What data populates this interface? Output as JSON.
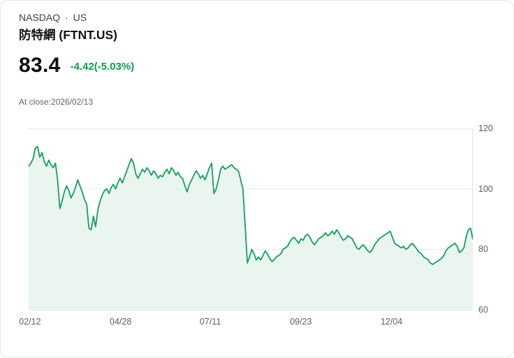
{
  "header": {
    "exchange": "NASDAQ",
    "separator": "·",
    "region": "US",
    "title": "防特網 (FTNT.US)",
    "price": "83.4",
    "change": "-4.42(-5.03%)",
    "close_info": "At close:2026/02/13"
  },
  "colors": {
    "line": "#14a05a",
    "area_fill": "#e9f5ee",
    "change_text": "#0f9d4e",
    "gridline": "#e9e9e9"
  },
  "chart_data": {
    "type": "area",
    "series_name": "FTNT.US",
    "x_tick_labels": [
      "02/12",
      "04/28",
      "07/11",
      "09/23",
      "12/04"
    ],
    "x_tick_positions": [
      0.003,
      0.207,
      0.409,
      0.613,
      0.817
    ],
    "y_ticks": [
      120,
      100,
      80,
      60
    ],
    "ylim": [
      60,
      120
    ],
    "y_axis_side": "right",
    "grid": true,
    "legend": "none",
    "values": [
      107.5,
      108.5,
      110,
      113.5,
      114,
      110.5,
      112,
      109,
      107.5,
      109.5,
      108,
      107,
      108.5,
      103,
      93.5,
      96,
      99,
      101,
      99.5,
      97,
      98.5,
      100.5,
      103,
      101,
      99,
      96.5,
      95,
      87,
      86.5,
      91,
      87.5,
      93,
      96,
      98,
      99.5,
      100,
      98.5,
      100.5,
      101.5,
      100,
      102,
      103.5,
      102,
      104,
      106,
      108,
      110,
      108.5,
      105,
      103.5,
      105,
      106.5,
      105.5,
      107,
      106,
      104.5,
      106,
      105,
      103.5,
      104.5,
      104,
      105.5,
      106.5,
      105,
      107,
      106,
      104.5,
      105.5,
      104,
      103.5,
      101,
      99,
      101.5,
      103,
      104.5,
      106,
      105,
      103.5,
      104.5,
      103,
      105,
      107,
      108.5,
      98.5,
      100,
      103,
      106.5,
      107.5,
      106.5,
      107,
      107.5,
      108,
      107,
      106.5,
      106,
      103,
      100,
      88,
      75.5,
      77.5,
      80,
      78.5,
      76.5,
      77.5,
      76.5,
      78,
      79.5,
      78.5,
      77,
      76,
      76.5,
      77.5,
      78,
      78.5,
      80,
      80.5,
      81,
      82.5,
      83.5,
      84,
      83,
      82,
      83.5,
      83,
      84.5,
      85,
      84,
      82.5,
      81.5,
      82.5,
      83.5,
      84,
      84.5,
      85.5,
      84.5,
      85,
      86,
      85,
      86.5,
      85.5,
      84,
      83,
      83.5,
      84.5,
      84,
      83.5,
      82,
      80.5,
      80,
      81,
      81.5,
      80.5,
      79.5,
      79,
      80,
      81.5,
      82.5,
      83.5,
      84,
      84.5,
      85,
      85.5,
      86,
      84,
      82,
      81.5,
      81,
      80.5,
      81,
      80,
      80.5,
      81.5,
      82,
      81,
      80,
      79,
      78.5,
      77.5,
      77,
      76.5,
      75.5,
      75,
      75.5,
      76,
      76.5,
      77,
      78,
      79.5,
      80.5,
      81,
      81.5,
      82,
      81,
      79,
      79.5,
      80.5,
      84,
      86.5,
      87,
      83.4
    ]
  }
}
